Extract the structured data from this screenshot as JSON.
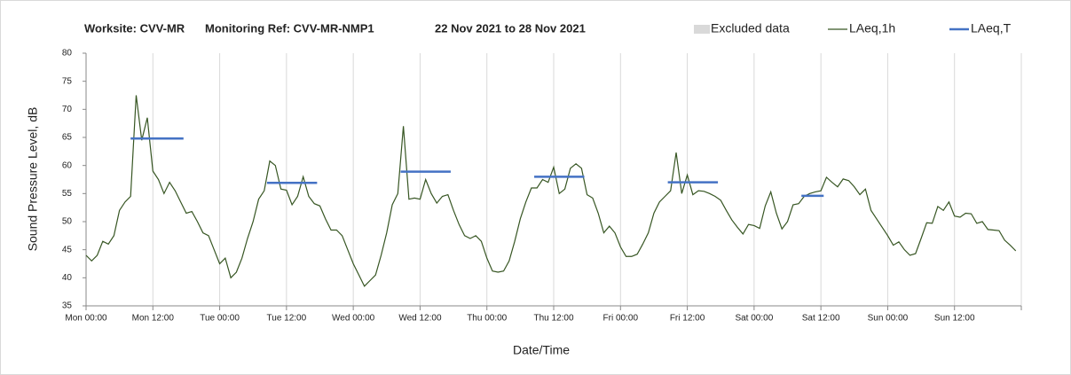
{
  "chart_data": {
    "type": "line",
    "title_parts": [
      "Worksite: CVV-MR",
      "Monitoring Ref: CVV-MR-NMP1",
      "22 Nov 2021 to 28 Nov 2021"
    ],
    "xlabel": "Date/Time",
    "ylabel": "Sound Pressure Level, dB",
    "xlim": [
      0,
      168
    ],
    "ylim": [
      35,
      80
    ],
    "yticks": [
      35,
      40,
      45,
      50,
      55,
      60,
      65,
      70,
      75,
      80
    ],
    "xticks": [
      {
        "value": 0,
        "label": "Mon 00:00"
      },
      {
        "value": 12,
        "label": "Mon 12:00"
      },
      {
        "value": 24,
        "label": "Tue 00:00"
      },
      {
        "value": 36,
        "label": "Tue 12:00"
      },
      {
        "value": 48,
        "label": "Wed 00:00"
      },
      {
        "value": 60,
        "label": "Wed 12:00"
      },
      {
        "value": 72,
        "label": "Thu 00:00"
      },
      {
        "value": 84,
        "label": "Thu 12:00"
      },
      {
        "value": 96,
        "label": "Fri 00:00"
      },
      {
        "value": 108,
        "label": "Fri 12:00"
      },
      {
        "value": 120,
        "label": "Sat 00:00"
      },
      {
        "value": 132,
        "label": "Sat 12:00"
      },
      {
        "value": 144,
        "label": "Sun 00:00"
      },
      {
        "value": 156,
        "label": "Sun 12:00"
      },
      {
        "value": 168,
        "label": ""
      }
    ],
    "grid": "x",
    "series": [
      {
        "name": "Excluded data",
        "color": "#d9d9d9"
      },
      {
        "name": "LAeq,1h",
        "color": "#375623",
        "x": [
          0,
          1,
          2,
          3,
          4,
          5,
          6,
          7,
          8,
          9,
          10,
          11,
          12,
          13,
          14,
          15,
          16,
          17,
          18,
          19,
          20,
          21,
          22,
          23,
          24,
          25,
          26,
          27,
          28,
          29,
          30,
          31,
          32,
          33,
          34,
          35,
          36,
          37,
          38,
          39,
          40,
          41,
          42,
          43,
          44,
          45,
          46,
          47,
          48,
          49,
          50,
          51,
          52,
          53,
          54,
          55,
          56,
          57,
          58,
          59,
          60,
          61,
          62,
          63,
          64,
          65,
          66,
          67,
          68,
          69,
          70,
          71,
          72,
          73,
          74,
          75,
          76,
          77,
          78,
          79,
          80,
          81,
          82,
          83,
          84,
          85,
          86,
          87,
          88,
          89,
          90,
          91,
          92,
          93,
          94,
          95,
          96,
          97,
          98,
          99,
          100,
          101,
          102,
          103,
          104,
          105,
          106,
          107,
          108,
          109,
          110,
          111,
          112,
          113,
          114,
          115,
          116,
          117,
          118,
          119,
          120,
          121,
          122,
          123,
          124,
          125,
          126,
          127,
          128,
          129,
          130,
          131,
          132,
          133,
          134,
          135,
          136,
          137,
          138,
          139,
          140,
          141,
          142,
          143,
          144,
          145,
          146,
          147,
          148,
          149,
          150,
          151,
          152,
          153,
          154,
          155,
          156,
          157,
          158,
          159,
          160,
          161,
          162,
          163,
          164,
          165,
          166,
          167
        ],
        "values": [
          44,
          43,
          44,
          46.5,
          46,
          47.5,
          52,
          53.5,
          54.5,
          72.5,
          64.5,
          68.5,
          59,
          57.5,
          55,
          57,
          55.5,
          53.5,
          51.5,
          51.8,
          50,
          48,
          47.5,
          45,
          42.5,
          43.5,
          40,
          41,
          43.5,
          47,
          50,
          54,
          55.5,
          60.8,
          60,
          55.8,
          55.6,
          53,
          54.5,
          58,
          54.5,
          53.2,
          52.8,
          50.5,
          48.5,
          48.5,
          47.5,
          45,
          42.5,
          40.5,
          38.5,
          39.5,
          40.5,
          44,
          48,
          53,
          55,
          67,
          54,
          54.2,
          54,
          57.5,
          55,
          53.3,
          54.5,
          54.8,
          52,
          49.5,
          47.5,
          47,
          47.5,
          46.5,
          43.5,
          41.2,
          41,
          41.2,
          43,
          46.5,
          50.5,
          53.5,
          56,
          56,
          57.5,
          57,
          59.7,
          55,
          55.8,
          59.5,
          60.3,
          59.5,
          54.8,
          54.2,
          51.5,
          48,
          49.2,
          48,
          45.5,
          43.8,
          43.8,
          44.2,
          46,
          48,
          51.5,
          53.5,
          54.5,
          55.5,
          62.3,
          55,
          58.3,
          54.8,
          55.5,
          55.4,
          55,
          54.5,
          53.8,
          52,
          50.3,
          49,
          47.8,
          49.5,
          49.3,
          48.8,
          52.8,
          55.3,
          51.5,
          48.7,
          50,
          53,
          53.2,
          54.5,
          55,
          55.3,
          55.5,
          57.9,
          57,
          56.2,
          57.6,
          57.3,
          56.2,
          54.8,
          55.8,
          52,
          50.5,
          49,
          47.5,
          45.8,
          46.4,
          45,
          44,
          44.3,
          47,
          49.8,
          49.7,
          52.7,
          52,
          53.5,
          51,
          50.8,
          51.5,
          51.4,
          49.7,
          50,
          48.6,
          48.5,
          48.4,
          46.7,
          45.8,
          44.8
        ]
      },
      {
        "name": "LAeq,T",
        "color": "#4472c4",
        "segments": [
          {
            "start": 8,
            "end": 17.5,
            "value": 64.8
          },
          {
            "start": 32.5,
            "end": 41.5,
            "value": 56.9
          },
          {
            "start": 56.5,
            "end": 65.5,
            "value": 58.9
          },
          {
            "start": 80.5,
            "end": 89.5,
            "value": 58
          },
          {
            "start": 104.5,
            "end": 113.5,
            "value": 57
          },
          {
            "start": 128.5,
            "end": 132.5,
            "value": 54.6
          }
        ]
      }
    ]
  }
}
